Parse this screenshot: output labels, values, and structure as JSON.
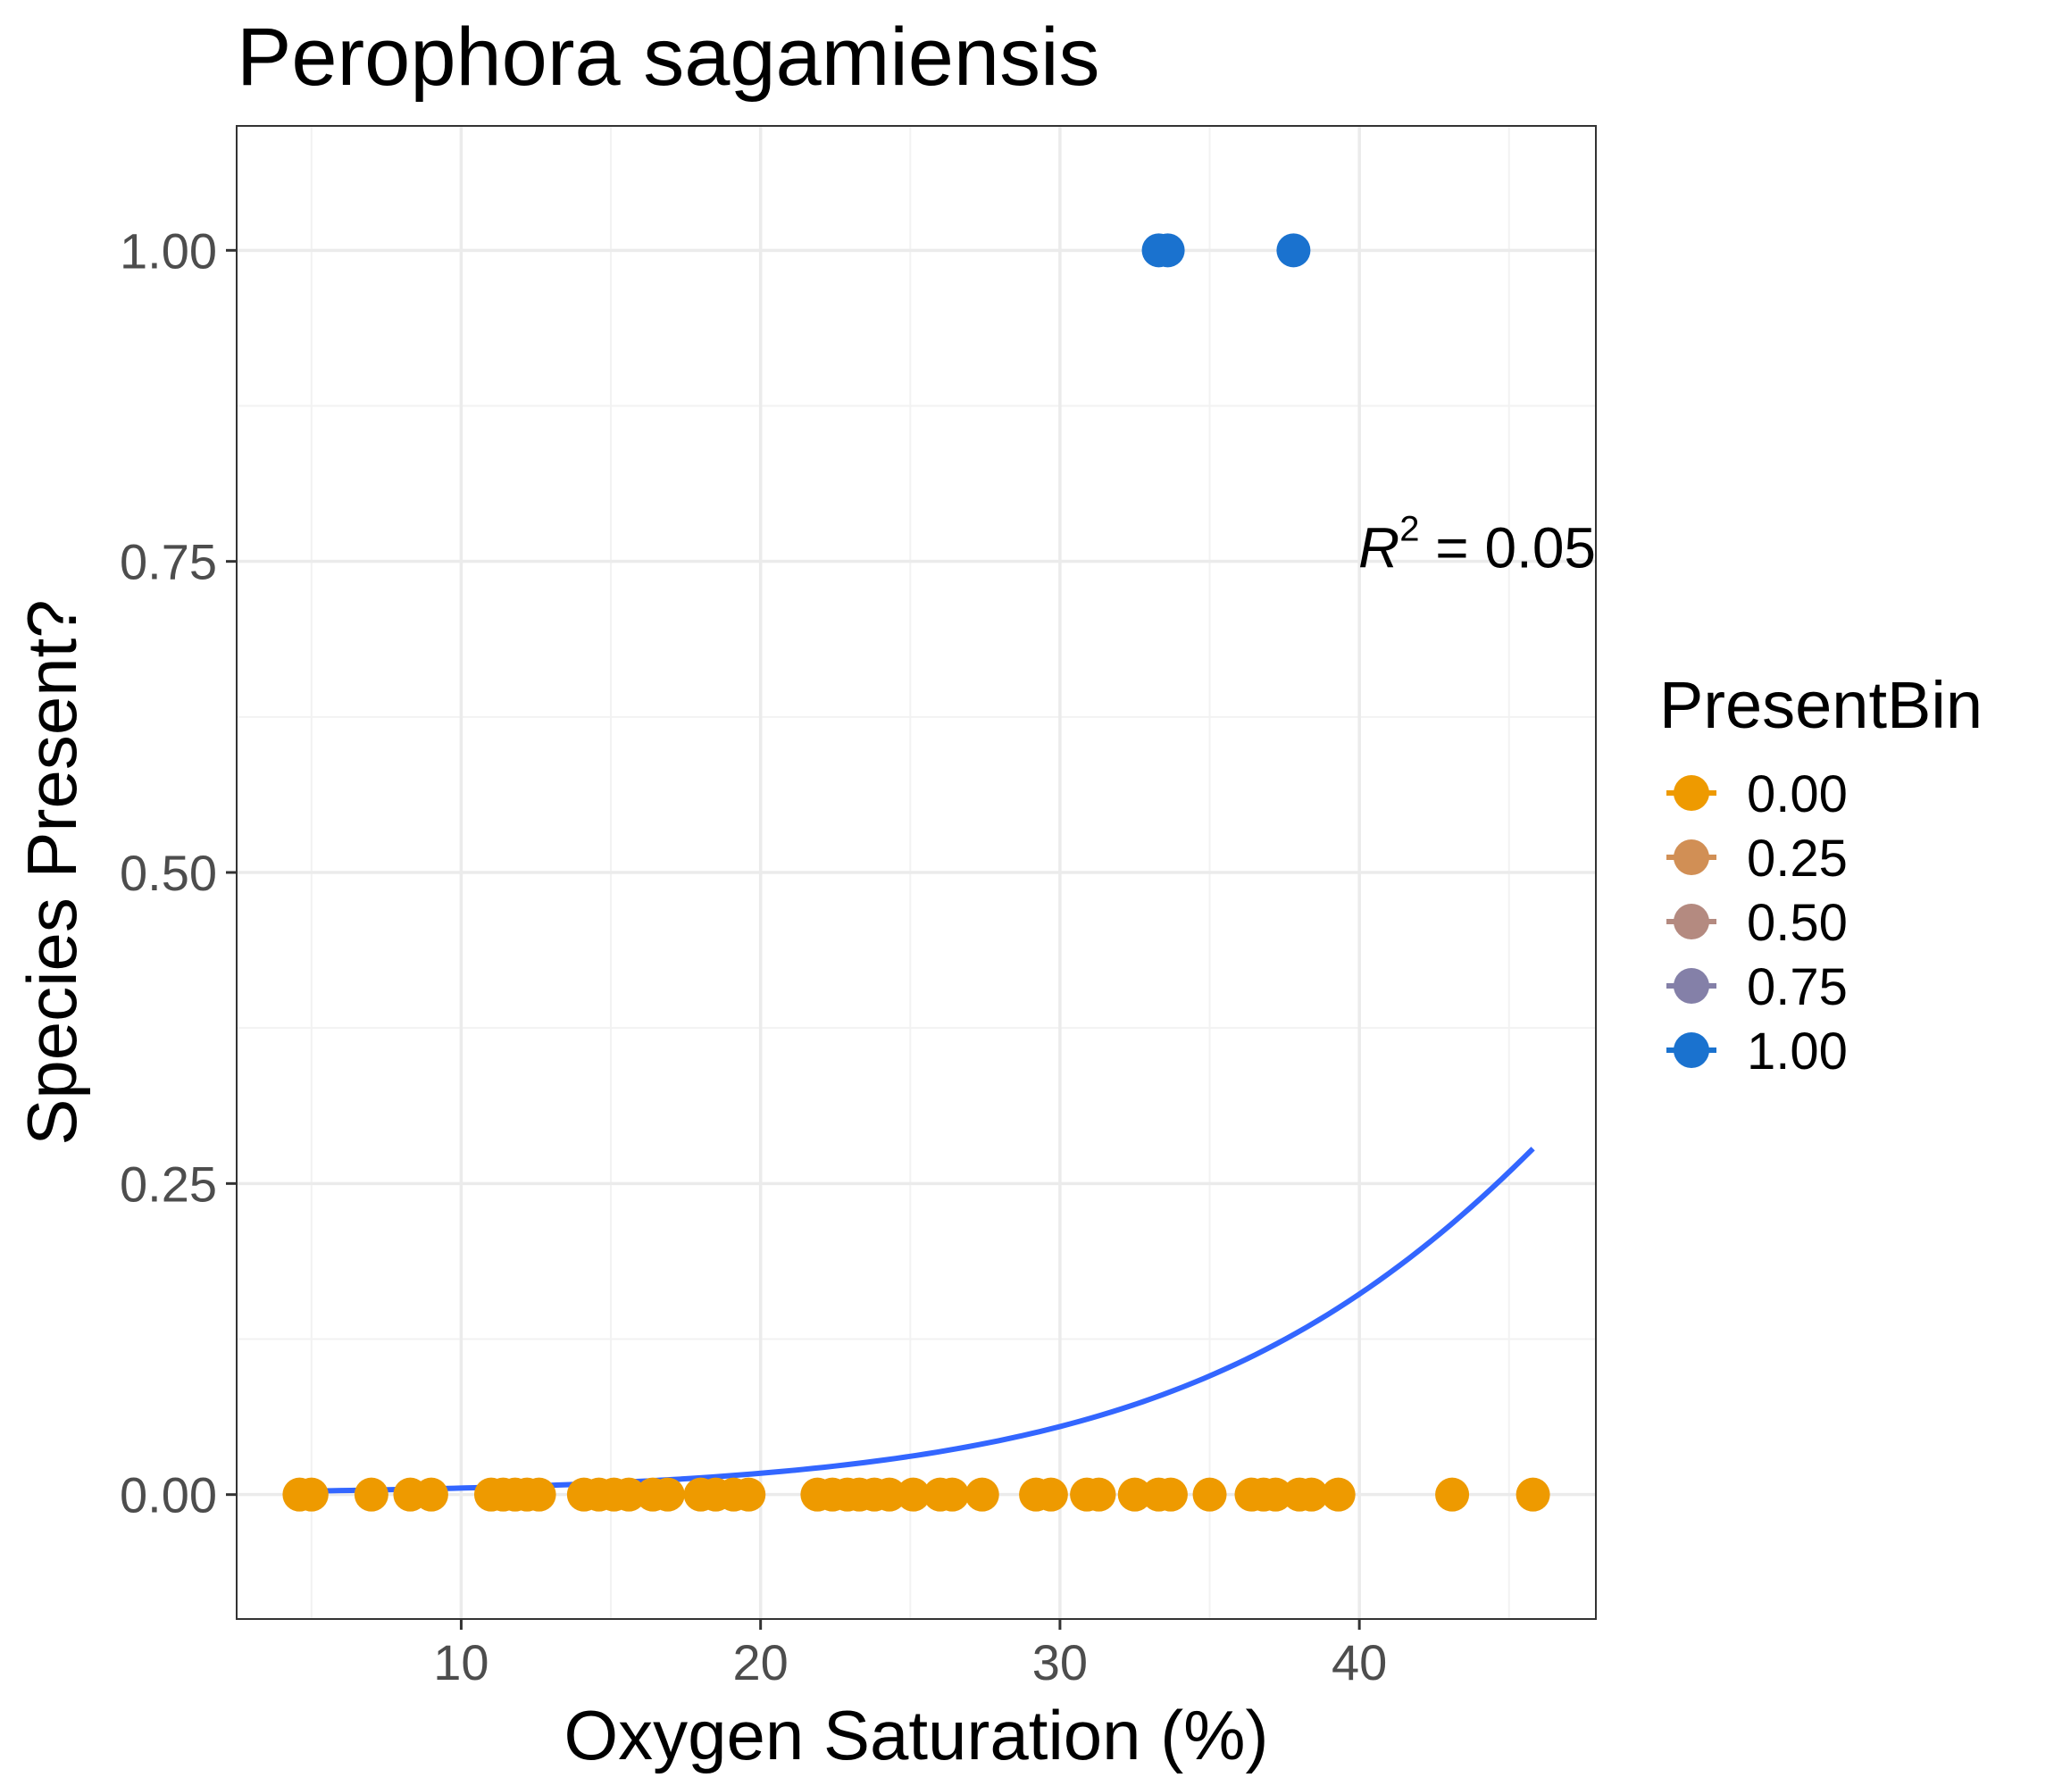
{
  "chart_data": {
    "type": "scatter",
    "title": "Perophora sagamiensis",
    "xlabel": "Oxygen Saturation (%)",
    "ylabel": "Species Present?",
    "xlim": [
      2.5,
      47.9
    ],
    "ylim": [
      -0.1,
      1.1
    ],
    "x_ticks": [
      10,
      20,
      30,
      40
    ],
    "x_tick_labels": [
      "10",
      "20",
      "30",
      "40"
    ],
    "y_ticks": [
      0,
      0.25,
      0.5,
      0.75,
      1.0
    ],
    "y_tick_labels": [
      "0.00",
      "0.25",
      "0.50",
      "0.75",
      "1.00"
    ],
    "grid": true,
    "legend": {
      "title": "PresentBin",
      "placement": "right",
      "entries": [
        {
          "label": "0.00",
          "color": "#ee9a00"
        },
        {
          "label": "0.25",
          "color": "#d18f55"
        },
        {
          "label": "0.50",
          "color": "#b48a80"
        },
        {
          "label": "0.75",
          "color": "#8480a8"
        },
        {
          "label": "1.00",
          "color": "#1a72cf"
        }
      ]
    },
    "annotation": {
      "lhs": "R",
      "sup": "2",
      "rhs": " = 0.05",
      "x": 47.9,
      "y": 0.745
    },
    "series": [
      {
        "color": "#ee9a00",
        "points": [
          [
            4.6,
            0
          ],
          [
            5.0,
            0
          ],
          [
            7.0,
            0
          ],
          [
            8.3,
            0
          ],
          [
            9.0,
            0
          ],
          [
            11.0,
            0
          ],
          [
            11.4,
            0
          ],
          [
            11.8,
            0
          ],
          [
            12.2,
            0
          ],
          [
            12.6,
            0
          ],
          [
            14.1,
            0
          ],
          [
            14.6,
            0
          ],
          [
            15.1,
            0
          ],
          [
            15.6,
            0
          ],
          [
            16.4,
            0
          ],
          [
            16.9,
            0
          ],
          [
            18.0,
            0
          ],
          [
            18.5,
            0
          ],
          [
            19.1,
            0
          ],
          [
            19.6,
            0
          ],
          [
            21.9,
            0
          ],
          [
            22.4,
            0
          ],
          [
            22.9,
            0
          ],
          [
            23.3,
            0
          ],
          [
            23.8,
            0
          ],
          [
            24.3,
            0
          ],
          [
            25.1,
            0
          ],
          [
            26.0,
            0
          ],
          [
            26.4,
            0
          ],
          [
            27.4,
            0
          ],
          [
            29.2,
            0
          ],
          [
            29.7,
            0
          ],
          [
            30.9,
            0
          ],
          [
            31.3,
            0
          ],
          [
            32.5,
            0
          ],
          [
            33.3,
            0
          ],
          [
            33.7,
            0
          ],
          [
            35.0,
            0
          ],
          [
            36.4,
            0
          ],
          [
            36.8,
            0
          ],
          [
            37.2,
            0
          ],
          [
            38.0,
            0
          ],
          [
            38.4,
            0
          ],
          [
            39.3,
            0
          ],
          [
            43.1,
            0
          ],
          [
            45.8,
            0
          ]
        ]
      },
      {
        "color": "#1a72cf",
        "points": [
          [
            33.3,
            1
          ],
          [
            33.6,
            1
          ],
          [
            37.8,
            1
          ]
        ]
      }
    ],
    "fit_curve": {
      "color": "#3366ff",
      "model": "logistic",
      "intercept": -6.45,
      "slope": 0.12,
      "x_range": [
        4.6,
        45.8
      ]
    }
  }
}
